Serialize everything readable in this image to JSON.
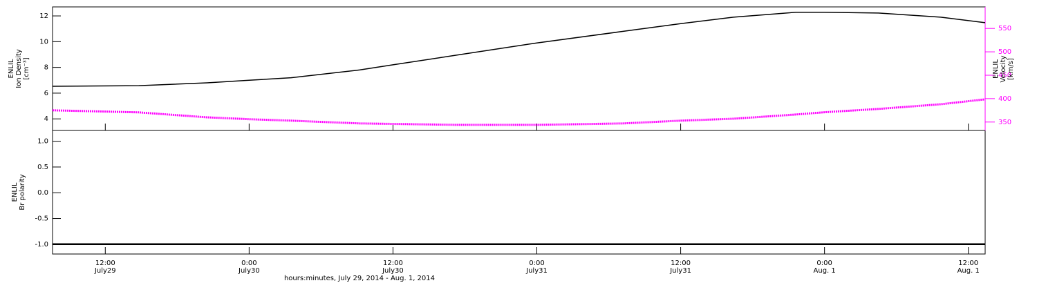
{
  "chart_data": [
    {
      "type": "line",
      "ylabel": [
        "ENLIL",
        "Ion Density",
        "[cm⁻³]"
      ],
      "y2label": [
        "ENLIL",
        "Velocity",
        "[km/s]"
      ],
      "x": [
        7.6,
        14.8,
        20.5,
        24,
        27.5,
        33.2,
        36,
        41.3,
        48,
        55.2,
        60,
        64.4,
        69.6,
        72,
        76.5,
        81.7,
        85.4
      ],
      "xlim": [
        7.6,
        85.4
      ],
      "ylim": [
        3.1,
        12.7
      ],
      "yticks": [
        4,
        6,
        8,
        10,
        12
      ],
      "y2lim": [
        332,
        596
      ],
      "y2ticks": [
        350,
        400,
        450,
        500,
        550
      ],
      "series": [
        {
          "name": "Ion Density",
          "color": "#000000",
          "values": [
            6.53,
            6.58,
            6.8,
            7.0,
            7.2,
            7.8,
            8.2,
            8.95,
            9.9,
            10.8,
            11.4,
            11.9,
            12.28,
            12.28,
            12.22,
            11.9,
            11.47
          ]
        },
        {
          "name": "Velocity",
          "color": "#ff00ff",
          "axis": "y2",
          "values": [
            375,
            370.6,
            360,
            356,
            353,
            347,
            346,
            344,
            344,
            347,
            353,
            357,
            366,
            371,
            378,
            388,
            398.5
          ]
        }
      ]
    },
    {
      "type": "line",
      "ylabel": [
        "ENLIL",
        "Br polarity"
      ],
      "xlabel": "hours:minutes, July 29, 2014 - Aug. 1, 2014",
      "x": [
        7.6,
        14.8,
        20.5,
        24,
        27.5,
        33.2,
        36,
        41.3,
        48,
        55.2,
        60,
        64.4,
        69.6,
        72,
        76.5,
        81.7,
        85.4
      ],
      "xlim": [
        7.6,
        85.4
      ],
      "xticks": [
        {
          "value": 12,
          "label": "12:00\nJuly29"
        },
        {
          "value": 24,
          "label": "0:00\nJuly30"
        },
        {
          "value": 36,
          "label": "12:00\nJuly30"
        },
        {
          "value": 48,
          "label": "0:00\nJuly31"
        },
        {
          "value": 60,
          "label": "12:00\nJuly31"
        },
        {
          "value": 72,
          "label": "0:00\nAug. 1"
        },
        {
          "value": 84,
          "label": "12:00\nAug. 1"
        }
      ],
      "ylim": [
        -1.19,
        1.21
      ],
      "yticks": [
        {
          "value": -1,
          "label": "-1.0"
        },
        {
          "value": -0.5,
          "label": "-0.5"
        },
        {
          "value": 0,
          "label": "0.0"
        },
        {
          "value": 0.5,
          "label": "0.5"
        },
        {
          "value": 1,
          "label": "1.0"
        }
      ],
      "series": [
        {
          "name": "Br polarity",
          "color": "#000000",
          "values": [
            -1,
            -1,
            -1,
            -1,
            -1,
            -1,
            -1,
            -1,
            -1,
            -1,
            -1,
            -1,
            -1,
            -1,
            -1,
            -1,
            -1
          ]
        }
      ]
    }
  ]
}
